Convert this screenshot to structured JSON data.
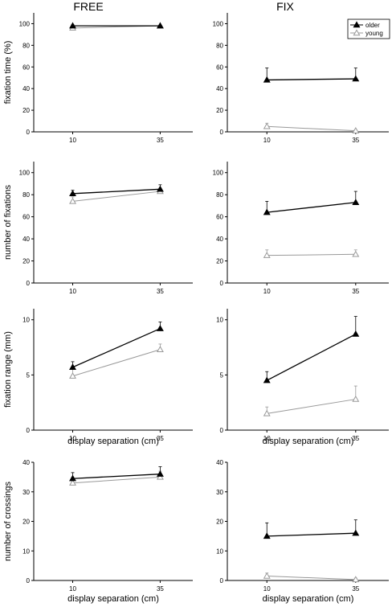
{
  "column_titles": {
    "free": "FREE",
    "fix": "FIX"
  },
  "legend": {
    "older": "older",
    "young": "young"
  },
  "colors": {
    "older": "#000000",
    "young": "#999999"
  },
  "chart_data": [
    {
      "id": "fixation-time-free",
      "type": "line",
      "ylabel": "fixation time (%)",
      "xlabel": "",
      "ylim": [
        0,
        110
      ],
      "yticks": [
        0,
        20,
        40,
        60,
        80,
        100
      ],
      "xticks": [
        "10",
        "35"
      ],
      "x": [
        10,
        35
      ],
      "series": [
        {
          "name": "older",
          "values": [
            98,
            98
          ],
          "err": [
            1,
            0.5
          ]
        },
        {
          "name": "young",
          "values": [
            96,
            98
          ],
          "err": [
            1,
            0.5
          ]
        }
      ]
    },
    {
      "id": "fixation-time-fix",
      "type": "line",
      "ylabel": "",
      "xlabel": "",
      "ylim": [
        0,
        110
      ],
      "yticks": [
        0,
        20,
        40,
        60,
        80,
        100
      ],
      "xticks": [
        "10",
        "35"
      ],
      "x": [
        10,
        35
      ],
      "legend": "top-right",
      "series": [
        {
          "name": "older",
          "values": [
            48,
            49
          ],
          "err": [
            11,
            10
          ]
        },
        {
          "name": "young",
          "values": [
            5,
            1
          ],
          "err": [
            3,
            1
          ]
        }
      ]
    },
    {
      "id": "number-fixations-free",
      "type": "line",
      "ylabel": "number of fixations",
      "xlabel": "",
      "ylim": [
        0,
        110
      ],
      "yticks": [
        0,
        20,
        40,
        60,
        80,
        100
      ],
      "xticks": [
        "10",
        "35"
      ],
      "x": [
        10,
        35
      ],
      "series": [
        {
          "name": "older",
          "values": [
            81,
            85
          ],
          "err": [
            3,
            4
          ]
        },
        {
          "name": "young",
          "values": [
            74,
            83
          ],
          "err": [
            4,
            3
          ]
        }
      ]
    },
    {
      "id": "number-fixations-fix",
      "type": "line",
      "ylabel": "",
      "xlabel": "",
      "ylim": [
        0,
        110
      ],
      "yticks": [
        0,
        20,
        40,
        60,
        80,
        100
      ],
      "xticks": [
        "10",
        "35"
      ],
      "x": [
        10,
        35
      ],
      "series": [
        {
          "name": "older",
          "values": [
            64,
            73
          ],
          "err": [
            10,
            10
          ]
        },
        {
          "name": "young",
          "values": [
            25,
            26
          ],
          "err": [
            5,
            4
          ]
        }
      ]
    },
    {
      "id": "fixation-range-free",
      "type": "line",
      "ylabel": "fixation range (mm)",
      "xlabel": "display separation (cm)",
      "ylim": [
        0,
        11
      ],
      "yticks": [
        0,
        5,
        10
      ],
      "xticks": [
        "10",
        "35"
      ],
      "x": [
        10,
        35
      ],
      "series": [
        {
          "name": "older",
          "values": [
            5.7,
            9.2
          ],
          "err": [
            0.5,
            0.6
          ]
        },
        {
          "name": "young",
          "values": [
            4.9,
            7.3
          ],
          "err": [
            0.6,
            0.5
          ]
        }
      ]
    },
    {
      "id": "fixation-range-fix",
      "type": "line",
      "ylabel": "",
      "xlabel": "display separation (cm)",
      "ylim": [
        0,
        11
      ],
      "yticks": [
        0,
        5,
        10
      ],
      "xticks": [
        "10",
        "35"
      ],
      "x": [
        10,
        35
      ],
      "series": [
        {
          "name": "older",
          "values": [
            4.5,
            8.7
          ],
          "err": [
            0.8,
            1.6
          ]
        },
        {
          "name": "young",
          "values": [
            1.5,
            2.8
          ],
          "err": [
            0.6,
            1.2
          ]
        }
      ]
    },
    {
      "id": "number-crossings-free",
      "type": "line",
      "ylabel": "number of crossings",
      "xlabel": "display separation (cm)",
      "ylim": [
        0,
        40
      ],
      "yticks": [
        0,
        10,
        20,
        30,
        40
      ],
      "xticks": [
        "10",
        "35"
      ],
      "x": [
        10,
        35
      ],
      "series": [
        {
          "name": "older",
          "values": [
            34.5,
            36
          ],
          "err": [
            2,
            2.5
          ]
        },
        {
          "name": "young",
          "values": [
            33,
            35
          ],
          "err": [
            2,
            2
          ]
        }
      ]
    },
    {
      "id": "number-crossings-fix",
      "type": "line",
      "ylabel": "",
      "xlabel": "display separation (cm)",
      "ylim": [
        0,
        40
      ],
      "yticks": [
        0,
        10,
        20,
        30,
        40
      ],
      "xticks": [
        "10",
        "35"
      ],
      "x": [
        10,
        35
      ],
      "series": [
        {
          "name": "older",
          "values": [
            15,
            16
          ],
          "err": [
            4.5,
            4.5
          ]
        },
        {
          "name": "young",
          "values": [
            1.5,
            0.3
          ],
          "err": [
            1,
            0.5
          ]
        }
      ]
    }
  ]
}
